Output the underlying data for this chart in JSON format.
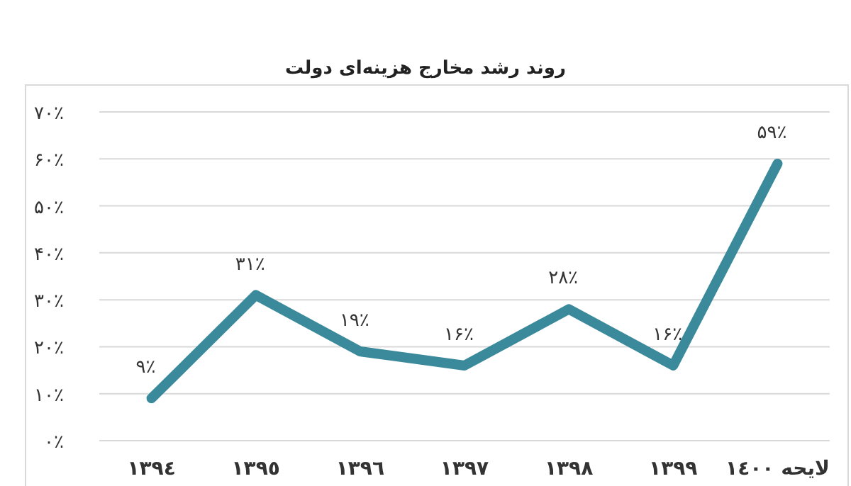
{
  "chart_data": {
    "type": "line",
    "title": "روند رشد مخارج هزینه‌ای دولت",
    "categories": [
      "١٣٩٤",
      "١٣٩٥",
      "١٣٩٦",
      "١٣٩٧",
      "١٣٩٨",
      "١٣٩٩",
      "لایحه ١٤٠٠"
    ],
    "series": [
      {
        "color": "#3a8a9c",
        "values": [
          9,
          31,
          19,
          16,
          28,
          16,
          59
        ],
        "value_labels": [
          "۹٪",
          "۳۱٪",
          "۱۹٪",
          "۱۶٪",
          "۲۸٪",
          "۱۶٪",
          "۵۹٪"
        ]
      }
    ],
    "ylim": [
      0,
      70
    ],
    "yticks": [
      {
        "value": 0,
        "label": "۰٪"
      },
      {
        "value": 10,
        "label": "۱۰٪"
      },
      {
        "value": 20,
        "label": "۲۰٪"
      },
      {
        "value": 30,
        "label": "۳۰٪"
      },
      {
        "value": 40,
        "label": "۴۰٪"
      },
      {
        "value": 50,
        "label": "۵۰٪"
      },
      {
        "value": 60,
        "label": "۶۰٪"
      },
      {
        "value": 70,
        "label": "۷۰٪"
      }
    ],
    "grid": "y",
    "marker": "none",
    "line_style": "solid"
  }
}
